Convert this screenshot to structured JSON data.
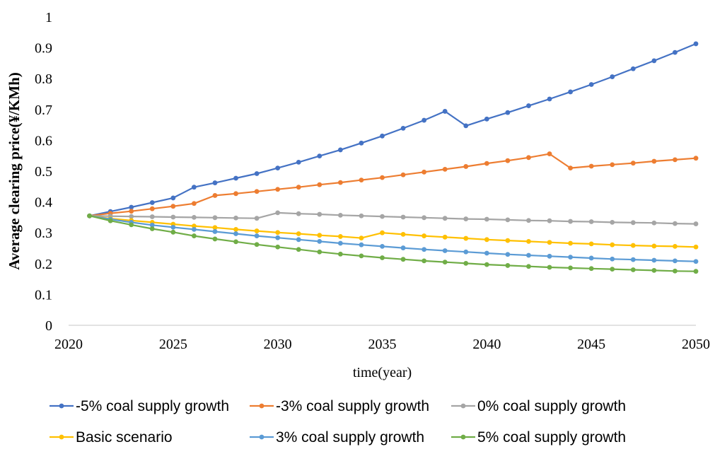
{
  "chart_data": {
    "type": "line",
    "title": "",
    "xlabel": "time(year)",
    "ylabel": "Average clearing price(¥/KMh)",
    "xlim": [
      2020,
      2050
    ],
    "ylim": [
      0,
      1
    ],
    "xticks": [
      2020,
      2025,
      2030,
      2035,
      2040,
      2045,
      2050
    ],
    "yticks": [
      0,
      0.1,
      0.2,
      0.3,
      0.4,
      0.5,
      0.6,
      0.7,
      0.8,
      0.9,
      1
    ],
    "ytick_labels": [
      "0",
      "0.1",
      "0.2",
      "0.3",
      "0.4",
      "0.5",
      "0.6",
      "0.7",
      "0.8",
      "0.9",
      "1"
    ],
    "grid": false,
    "legend_position": "bottom",
    "x": [
      2021,
      2022,
      2023,
      2024,
      2025,
      2026,
      2027,
      2028,
      2029,
      2030,
      2031,
      2032,
      2033,
      2034,
      2035,
      2036,
      2037,
      2038,
      2039,
      2040,
      2041,
      2042,
      2043,
      2044,
      2045,
      2046,
      2047,
      2048,
      2049,
      2050
    ],
    "series": [
      {
        "name": "-5% coal supply growth",
        "color": "#4472C4",
        "values": [
          0.355,
          0.369,
          0.383,
          0.398,
          0.413,
          0.448,
          0.462,
          0.477,
          0.492,
          0.51,
          0.529,
          0.549,
          0.569,
          0.591,
          0.614,
          0.639,
          0.665,
          0.694,
          0.647,
          0.669,
          0.69,
          0.712,
          0.734,
          0.757,
          0.781,
          0.806,
          0.832,
          0.858,
          0.885,
          0.913
        ]
      },
      {
        "name": "-3% coal supply growth",
        "color": "#ED7D31",
        "values": [
          0.355,
          0.363,
          0.37,
          0.378,
          0.386,
          0.395,
          0.421,
          0.427,
          0.434,
          0.441,
          0.448,
          0.456,
          0.463,
          0.471,
          0.479,
          0.488,
          0.497,
          0.506,
          0.515,
          0.525,
          0.534,
          0.544,
          0.556,
          0.51,
          0.516,
          0.521,
          0.526,
          0.532,
          0.537,
          0.542
        ]
      },
      {
        "name": "0% coal supply growth",
        "color": "#A5A5A5",
        "values": [
          0.355,
          0.354,
          0.353,
          0.352,
          0.351,
          0.35,
          0.349,
          0.348,
          0.347,
          0.365,
          0.362,
          0.36,
          0.357,
          0.355,
          0.353,
          0.351,
          0.349,
          0.347,
          0.345,
          0.344,
          0.342,
          0.34,
          0.339,
          0.337,
          0.336,
          0.334,
          0.333,
          0.332,
          0.33,
          0.329
        ]
      },
      {
        "name": "Basic scenario",
        "color": "#FFC000",
        "values": [
          0.355,
          0.346,
          0.34,
          0.334,
          0.328,
          0.322,
          0.317,
          0.311,
          0.306,
          0.301,
          0.297,
          0.292,
          0.288,
          0.283,
          0.3,
          0.295,
          0.29,
          0.286,
          0.282,
          0.278,
          0.275,
          0.272,
          0.269,
          0.266,
          0.264,
          0.261,
          0.259,
          0.257,
          0.256,
          0.254
        ]
      },
      {
        "name": "3% coal supply growth",
        "color": "#5B9BD5",
        "values": [
          0.355,
          0.344,
          0.334,
          0.325,
          0.318,
          0.311,
          0.304,
          0.297,
          0.29,
          0.284,
          0.278,
          0.272,
          0.266,
          0.261,
          0.256,
          0.251,
          0.246,
          0.242,
          0.238,
          0.234,
          0.23,
          0.227,
          0.224,
          0.221,
          0.218,
          0.215,
          0.213,
          0.211,
          0.209,
          0.207
        ]
      },
      {
        "name": "5% coal supply growth",
        "color": "#70AD47",
        "values": [
          0.355,
          0.339,
          0.326,
          0.313,
          0.302,
          0.29,
          0.28,
          0.271,
          0.262,
          0.254,
          0.246,
          0.238,
          0.231,
          0.225,
          0.219,
          0.214,
          0.209,
          0.205,
          0.201,
          0.197,
          0.194,
          0.191,
          0.188,
          0.186,
          0.184,
          0.182,
          0.18,
          0.178,
          0.176,
          0.175
        ]
      }
    ]
  }
}
